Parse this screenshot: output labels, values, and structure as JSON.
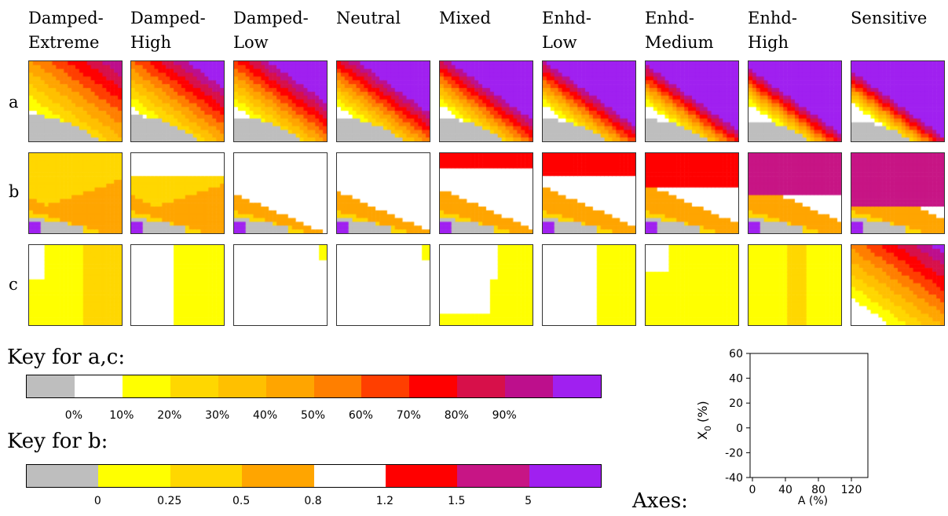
{
  "columns": [
    {
      "line1": "Damped-",
      "line2": "Extreme"
    },
    {
      "line1": "Damped-",
      "line2": "High"
    },
    {
      "line1": "Damped-",
      "line2": "Low"
    },
    {
      "line1": "Neutral",
      "line2": ""
    },
    {
      "line1": "Mixed",
      "line2": ""
    },
    {
      "line1": "Enhd-",
      "line2": "Low"
    },
    {
      "line1": "Enhd-",
      "line2": "Medium"
    },
    {
      "line1": "Enhd-",
      "line2": "High"
    },
    {
      "line1": "Sensitive",
      "line2": ""
    }
  ],
  "rows": [
    "a",
    "b",
    "c"
  ],
  "key_ac": {
    "title": "Key for a,c:",
    "colors": [
      "#bebebe",
      "#ffffff",
      "#ffff00",
      "#ffd700",
      "#ffc000",
      "#ffa500",
      "#ff7f00",
      "#ff3f00",
      "#ff0000",
      "#d7104a",
      "#bd0f8c",
      "#a020f0"
    ],
    "ticks": [
      "0%",
      "10%",
      "20%",
      "30%",
      "40%",
      "50%",
      "60%",
      "70%",
      "80%",
      "90%"
    ]
  },
  "key_b": {
    "title": "Key for b:",
    "colors": [
      "#bebebe",
      "#ffff00",
      "#ffd700",
      "#ffa500",
      "#ffffff",
      "#ff0000",
      "#c71585",
      "#a020f0"
    ],
    "ticks": [
      "0",
      "0.25",
      "0.5",
      "0.8",
      "1.2",
      "1.5",
      "5"
    ]
  },
  "axes": {
    "label": "Axes:",
    "xlabel": "A (%)",
    "ylabel": "X0 (%)",
    "ylabel_main": "X",
    "ylabel_sub": "0",
    "ylabel_rest": "(%)",
    "xticks": [
      "0",
      "40",
      "80",
      "120"
    ],
    "yticks": [
      "60",
      "40",
      "20",
      "0",
      "-20",
      "-40"
    ]
  },
  "chart_data": {
    "type": "heatmap",
    "title": "",
    "xlabel": "A (%)",
    "ylabel": "X0 (%)",
    "xlim": [
      0,
      120
    ],
    "ylim": [
      -40,
      60
    ],
    "panels_columns": [
      "Damped-Extreme",
      "Damped-High",
      "Damped-Low",
      "Neutral",
      "Mixed",
      "Enhd-Low",
      "Enhd-Medium",
      "Enhd-High",
      "Sensitive"
    ],
    "panels_rows": [
      "a",
      "b",
      "c"
    ]
  }
}
